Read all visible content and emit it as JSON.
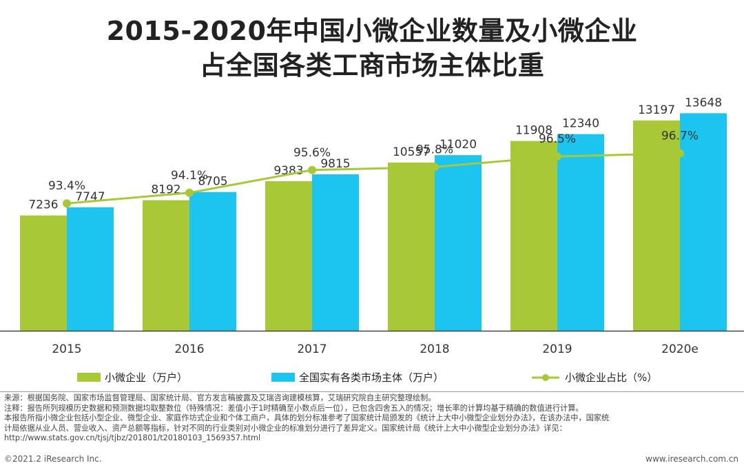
{
  "title": {
    "line1": "2015-2020年中国小微企业数量及小微企业",
    "line2": "占全国各类工商市场主体比重"
  },
  "colors": {
    "bar1": "#a7c936",
    "bar2": "#1cc4f0",
    "line": "#a7c936",
    "axis": "#444444"
  },
  "chart_data": {
    "type": "bar+line",
    "categories": [
      "2015",
      "2016",
      "2017",
      "2018",
      "2019",
      "2020e"
    ],
    "series": [
      {
        "name": "小微企业（万户）",
        "type": "bar",
        "values": [
          7236,
          8192,
          9383,
          10557,
          11908,
          13197
        ]
      },
      {
        "name": "全国实有各类市场主体（万户）",
        "type": "bar",
        "values": [
          7747,
          8705,
          9815,
          11020,
          12340,
          13648
        ]
      },
      {
        "name": "小微企业占比（%）",
        "type": "line",
        "values": [
          93.4,
          94.1,
          95.6,
          95.8,
          96.5,
          96.7
        ],
        "labels": [
          "93.4%",
          "94.1%",
          "95.6%",
          "95.8%",
          "96.5%",
          "96.7%"
        ]
      }
    ],
    "ylim_bars": [
      0,
      16000
    ],
    "ylim_line": [
      85,
      100
    ],
    "legend_position": "bottom"
  },
  "legend": {
    "bar1": "小微企业（万户）",
    "bar2": "全国实有各类市场主体（万户）",
    "line": "小微企业占比（%）"
  },
  "notes": [
    "来源：根据国务院、国家市场监督管理局、国家统计局、官方发言稿披露及艾瑞咨询建模核算，艾瑞研究院自主研究整理绘制。",
    "注释：报告所列规模历史数据和预测数据均取整数位（特殊情况：差值小于1时精确至小数点后一位），已包含四舍五入的情况；增长率的计算均基于精确的数值进行计算。",
    "本报告所指小微企业包括小型企业、微型企业、家庭作坊式企业和个体工商户，具体的划分标准参考了国家统计局颁发的《统计上大中小微型企业划分办法》，在该办法中，国家统",
    "计局依据从业人员、营业收入、资产总额等指标，针对不同的行业类别对小微企业的标准划分进行了差异定义。国家统计局《统计上大中小微型企业划分办法》详见：",
    "http://www.stats.gov.cn/tjsj/tjbz/201801/t20180103_1569357.html"
  ],
  "footer": {
    "left": "©2021.2 iResearch Inc.",
    "right": "www.iresearch.com.cn"
  }
}
